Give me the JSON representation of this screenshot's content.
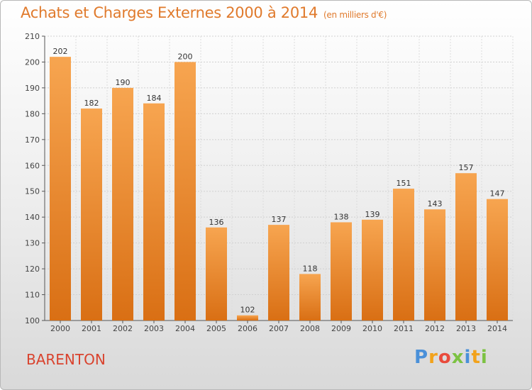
{
  "header": {
    "title": "Achats et Charges Externes 2000 à 2014",
    "subtitle": "(en milliers d'€)"
  },
  "footer": {
    "location": "BARENTON",
    "logo_letters": [
      "P",
      "r",
      "o",
      "x",
      "i",
      "t",
      "i"
    ],
    "logo_colors": [
      "#4a90d9",
      "#f2a21b",
      "#e94b3c",
      "#7cc242",
      "#4a90d9",
      "#f2a21b",
      "#7cc242"
    ]
  },
  "chart_data": {
    "type": "bar",
    "title": "Achats et Charges Externes 2000 à 2014",
    "subtitle": "(en milliers d'€)",
    "categories": [
      "2000",
      "2001",
      "2002",
      "2003",
      "2004",
      "2005",
      "2006",
      "2007",
      "2008",
      "2009",
      "2010",
      "2011",
      "2012",
      "2013",
      "2014"
    ],
    "values": [
      202,
      182,
      190,
      184,
      200,
      136,
      102,
      137,
      118,
      138,
      139,
      151,
      143,
      157,
      147
    ],
    "yticks": [
      100,
      110,
      120,
      130,
      140,
      150,
      160,
      170,
      180,
      190,
      200,
      210
    ],
    "ylim": [
      100,
      210
    ],
    "xlabel": "",
    "ylabel": "",
    "grid": true,
    "bar_color": "#f08a24",
    "bar_color_light": "#f7a65a",
    "bar_color_dark": "#d26d12"
  }
}
